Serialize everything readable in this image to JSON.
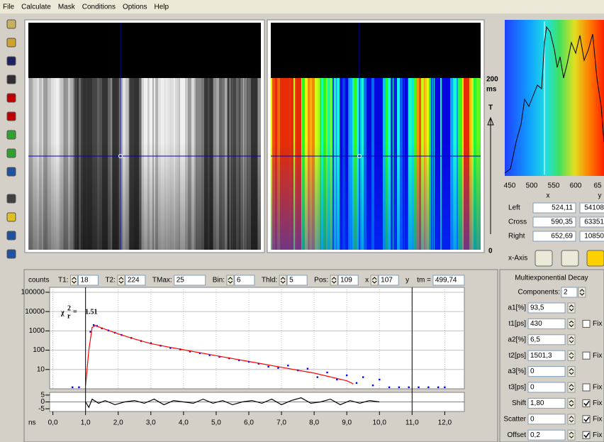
{
  "menu": [
    "File",
    "Calculate",
    "Mask",
    "Conditions",
    "Options",
    "Help"
  ],
  "image_scale": {
    "top": 200,
    "unit": "ms",
    "axis": "T",
    "bottom": 0
  },
  "spectrum": {
    "xticks": [
      450,
      500,
      550,
      600,
      65
    ],
    "col_x": "x",
    "col_y": "y",
    "rows": [
      {
        "label": "Left",
        "x": "524,11",
        "y": "54108"
      },
      {
        "label": "Cross",
        "x": "590,35",
        "y": "63351"
      },
      {
        "label": "Right",
        "x": "652,69",
        "y": "10850"
      }
    ],
    "x_axis": "x-Axis"
  },
  "controls": {
    "fields": [
      {
        "label": "T1:",
        "value": 18
      },
      {
        "label": "T2:",
        "value": 224
      },
      {
        "label": "TMax:",
        "value": 25,
        "plain": true
      },
      {
        "label": "Bin:",
        "value": 6
      },
      {
        "label": "Thld:",
        "value": 5
      },
      {
        "label": "Pos:",
        "value": 109
      },
      {
        "label": "x",
        "value": 107
      },
      {
        "label": "y"
      },
      {
        "label": "tm =",
        "value": "499,74",
        "plain": true
      }
    ]
  },
  "chart_data": [
    {
      "type": "line",
      "ylabel": "counts",
      "log_y": true,
      "grid": true,
      "xlim": [
        -0.1,
        12.6
      ],
      "ylim": [
        1,
        180000
      ],
      "xticks": [
        {
          "value": 0,
          "label": "0,0"
        },
        {
          "value": 1,
          "label": "1,0"
        },
        {
          "value": 2,
          "label": "2,0"
        },
        {
          "value": 3,
          "label": "3,0"
        },
        {
          "value": 4,
          "label": "4,0"
        },
        {
          "value": 5,
          "label": "5,0"
        },
        {
          "value": 6,
          "label": "6,0"
        },
        {
          "value": 7,
          "label": "7,0"
        },
        {
          "value": 8,
          "label": "8,0"
        },
        {
          "value": 9,
          "label": "9,0"
        },
        {
          "value": 10,
          "label": "10,0"
        },
        {
          "value": 11,
          "label": "11,0"
        },
        {
          "value": 12,
          "label": "12,0"
        }
      ],
      "yticks": [
        10,
        100,
        1000,
        10000,
        100000
      ],
      "cursors": [
        1.0,
        11.0
      ],
      "annotation": {
        "symbol": "χ",
        "sup": "2",
        "sub": "r",
        "eq": "=",
        "value": "1.51"
      },
      "series": [
        {
          "color": "#0000ff",
          "mode": "markers",
          "x": [
            0.6,
            0.8,
            1.15,
            1.25,
            1.35,
            1.5,
            1.7,
            1.9,
            2.1,
            2.4,
            2.7,
            3.0,
            3.3,
            3.6,
            3.9,
            4.2,
            4.5,
            4.8,
            5.1,
            5.4,
            5.7,
            6.0,
            6.3,
            6.6,
            6.9,
            7.2,
            7.5,
            7.8,
            8.1,
            8.4,
            8.7,
            9.0,
            9.3,
            9.5,
            9.8,
            10.0,
            10.3,
            10.6,
            10.9,
            11.2,
            11.5,
            11.8,
            12.0
          ],
          "values": [
            1.2,
            1.2,
            900,
            2000,
            1800,
            1350,
            1050,
            800,
            620,
            430,
            300,
            230,
            170,
            130,
            110,
            85,
            70,
            55,
            45,
            38,
            30,
            25,
            20,
            14,
            12,
            16,
            9,
            11,
            4,
            7,
            3,
            5,
            2,
            4,
            1.5,
            3,
            1.2,
            1.2,
            1.2,
            1.2,
            1.2,
            1.2,
            1.2
          ]
        },
        {
          "color": "#ff0000",
          "mode": "line",
          "x": [
            1.0,
            1.1,
            1.2,
            1.3,
            1.5,
            1.75,
            2.0,
            2.5,
            3.0,
            3.5,
            4.0,
            5.0,
            6.0,
            7.0,
            8.0,
            9.0,
            9.2
          ],
          "values": [
            1.5,
            100,
            1500,
            1900,
            1400,
            1000,
            700,
            380,
            220,
            150,
            105,
            52,
            26,
            13,
            6.5,
            2.6,
            1.8
          ]
        }
      ]
    },
    {
      "type": "line",
      "xlabel": "ns",
      "xlim": [
        -0.1,
        12.6
      ],
      "ylim": [
        -7,
        7
      ],
      "yticks": [
        5,
        0,
        -5
      ],
      "xticks": [
        {
          "value": 0,
          "label": "0,0"
        },
        {
          "value": 1,
          "label": "1,0"
        },
        {
          "value": 2,
          "label": "2,0"
        },
        {
          "value": 3,
          "label": "3,0"
        },
        {
          "value": 4,
          "label": "4,0"
        },
        {
          "value": 5,
          "label": "5,0"
        },
        {
          "value": 6,
          "label": "6,0"
        },
        {
          "value": 7,
          "label": "7,0"
        },
        {
          "value": 8,
          "label": "8,0"
        },
        {
          "value": 9,
          "label": "9,0"
        },
        {
          "value": 10,
          "label": "10,0"
        },
        {
          "value": 11,
          "label": "11,0"
        },
        {
          "value": 12,
          "label": "12,0"
        }
      ],
      "series": [
        {
          "color": "#000000",
          "mode": "line",
          "x": [
            1.0,
            1.1,
            1.2,
            1.4,
            1.6,
            1.9,
            2.2,
            2.5,
            2.8,
            3.1,
            3.4,
            3.7,
            4.0,
            4.3,
            4.6,
            4.9,
            5.2,
            5.5,
            5.8,
            6.1,
            6.4,
            6.7,
            7.0,
            7.3,
            7.6,
            7.9,
            8.2,
            8.5,
            8.8,
            9.1,
            9.4,
            9.7,
            10.0
          ],
          "values": [
            0,
            -4,
            2,
            -1,
            1,
            -2,
            0,
            1,
            -1,
            2,
            -2,
            1,
            0,
            -1,
            2,
            -1,
            1,
            -2,
            0,
            1,
            -1,
            2,
            -2,
            1,
            3,
            -1,
            0,
            2,
            -2,
            1,
            -1,
            1,
            0
          ]
        }
      ]
    }
  ],
  "fit_panel": {
    "title": "Multiexponential Decay",
    "components_label": "Components:",
    "components": 2,
    "params": [
      {
        "label": "a1[%]",
        "value": "93,5",
        "color": "#008000"
      },
      {
        "label": "t1[ps]",
        "value": "430",
        "color": "#000080",
        "fix": "Fix",
        "fixed": false
      },
      {
        "label": "a2[%]",
        "value": "6,5",
        "color": "#008000"
      },
      {
        "label": "t2[ps]",
        "value": "1501,3",
        "color": "#000080",
        "fix": "Fix",
        "fixed": false
      },
      {
        "label": "a3[%]",
        "value": "0",
        "color": "#008000"
      },
      {
        "label": "t3[ps]",
        "value": "0",
        "color": "#000080",
        "fix": "Fix",
        "fixed": false
      },
      {
        "label": "Shift",
        "value": "1,80",
        "color": "#000000",
        "fix": "Fix",
        "fixed": true
      },
      {
        "label": "Scatter",
        "value": "0",
        "color": "#000000",
        "fix": "Fix",
        "fixed": true
      },
      {
        "label": "Offset",
        "value": "0,2",
        "color": "#000000",
        "fix": "Fix",
        "fixed": true
      }
    ]
  }
}
